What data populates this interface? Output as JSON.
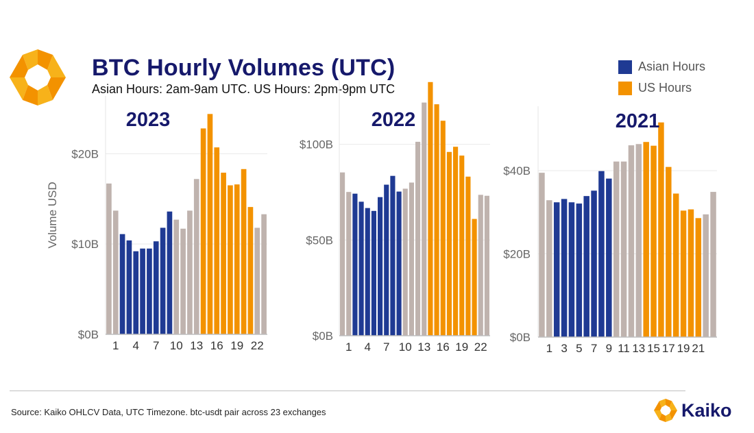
{
  "header": {
    "title": "BTC Hourly Volumes (UTC)",
    "subtitle": "Asian Hours: 2am-9am UTC. US Hours: 2pm-9pm UTC"
  },
  "legend": [
    {
      "label": "Asian Hours",
      "color": "#1f3a93"
    },
    {
      "label": "US Hours",
      "color": "#f39200"
    }
  ],
  "colors": {
    "asian": "#1f3a93",
    "us": "#f39200",
    "other": "#bfb3ae"
  },
  "footer": {
    "source": "Source: Kaiko OHLCV Data, UTC Timezone. btc-usdt pair across 23 exchanges",
    "brand": "Kaiko"
  },
  "chart_data": [
    {
      "type": "bar",
      "title": "2023",
      "ylabel": "Volume USD",
      "xlabel": "",
      "categories": [
        "0",
        "1",
        "2",
        "3",
        "4",
        "5",
        "6",
        "7",
        "8",
        "9",
        "10",
        "11",
        "12",
        "13",
        "14",
        "15",
        "16",
        "17",
        "18",
        "19",
        "20",
        "21",
        "22",
        "23"
      ],
      "values": [
        16.7,
        13.7,
        11.1,
        10.4,
        9.2,
        9.5,
        9.5,
        10.3,
        11.8,
        13.6,
        12.7,
        11.7,
        13.7,
        17.2,
        22.8,
        24.4,
        20.7,
        17.9,
        16.5,
        16.6,
        18.3,
        14.1,
        11.8,
        13.3
      ],
      "highlight": [
        "other",
        "other",
        "asian",
        "asian",
        "asian",
        "asian",
        "asian",
        "asian",
        "asian",
        "asian",
        "other",
        "other",
        "other",
        "other",
        "us",
        "us",
        "us",
        "us",
        "us",
        "us",
        "us",
        "us",
        "other",
        "other"
      ],
      "tick_labels": [
        "1",
        "4",
        "7",
        "10",
        "13",
        "16",
        "19",
        "22"
      ],
      "tick_positions": [
        1,
        4,
        7,
        10,
        13,
        16,
        19,
        22
      ],
      "y_ticks": [
        {
          "value": 0,
          "label": "$0B"
        },
        {
          "value": 10,
          "label": "$10B"
        },
        {
          "value": 20,
          "label": "$20B"
        }
      ],
      "ylim": [
        0,
        26.4
      ],
      "grid": true
    },
    {
      "type": "bar",
      "title": "2022",
      "ylabel": "",
      "xlabel": "",
      "categories": [
        "0",
        "1",
        "2",
        "3",
        "4",
        "5",
        "6",
        "7",
        "8",
        "9",
        "10",
        "11",
        "12",
        "13",
        "14",
        "15",
        "16",
        "17",
        "18",
        "19",
        "20",
        "21",
        "22",
        "23"
      ],
      "values": [
        85.3,
        75.1,
        74.2,
        70.0,
        66.7,
        65.2,
        72.4,
        78.9,
        83.5,
        75.3,
        76.8,
        80.0,
        101.3,
        121.8,
        132.5,
        120.9,
        112.3,
        96.0,
        98.7,
        94.1,
        83.1,
        61.0,
        73.6,
        73.1
      ],
      "highlight": [
        "other",
        "other",
        "asian",
        "asian",
        "asian",
        "asian",
        "asian",
        "asian",
        "asian",
        "asian",
        "other",
        "other",
        "other",
        "other",
        "us",
        "us",
        "us",
        "us",
        "us",
        "us",
        "us",
        "us",
        "other",
        "other"
      ],
      "tick_labels": [
        "1",
        "4",
        "7",
        "10",
        "13",
        "16",
        "19",
        "22"
      ],
      "tick_positions": [
        1,
        4,
        7,
        10,
        13,
        16,
        19,
        22
      ],
      "y_ticks": [
        {
          "value": 0,
          "label": "$0B"
        },
        {
          "value": 50,
          "label": "$50B"
        },
        {
          "value": 100,
          "label": "$100B"
        }
      ],
      "ylim": [
        0,
        136
      ],
      "grid": true
    },
    {
      "type": "bar",
      "title": "2021",
      "ylabel": "",
      "xlabel": "",
      "categories": [
        "0",
        "1",
        "2",
        "3",
        "4",
        "5",
        "6",
        "7",
        "8",
        "9",
        "10",
        "11",
        "12",
        "13",
        "14",
        "15",
        "16",
        "17",
        "18",
        "19",
        "20",
        "21",
        "22",
        "23"
      ],
      "values": [
        39.5,
        32.9,
        32.4,
        33.2,
        32.4,
        32.1,
        33.9,
        35.2,
        39.9,
        38.1,
        42.2,
        42.2,
        46.1,
        46.4,
        46.9,
        46.0,
        51.6,
        40.9,
        34.5,
        30.4,
        30.7,
        28.6,
        29.5,
        34.9
      ],
      "highlight": [
        "other",
        "other",
        "asian",
        "asian",
        "asian",
        "asian",
        "asian",
        "asian",
        "asian",
        "asian",
        "other",
        "other",
        "other",
        "other",
        "us",
        "us",
        "us",
        "us",
        "us",
        "us",
        "us",
        "us",
        "other",
        "other"
      ],
      "tick_labels": [
        "1",
        "3",
        "5",
        "7",
        "9",
        "11",
        "13",
        "15",
        "17",
        "19",
        "21"
      ],
      "tick_positions": [
        1,
        3,
        5,
        7,
        9,
        11,
        13,
        15,
        17,
        19,
        21
      ],
      "y_ticks": [
        {
          "value": 0,
          "label": "$0B"
        },
        {
          "value": 20,
          "label": "$20B"
        },
        {
          "value": 40,
          "label": "$40B"
        }
      ],
      "ylim": [
        0,
        55.5
      ],
      "grid": true
    }
  ]
}
